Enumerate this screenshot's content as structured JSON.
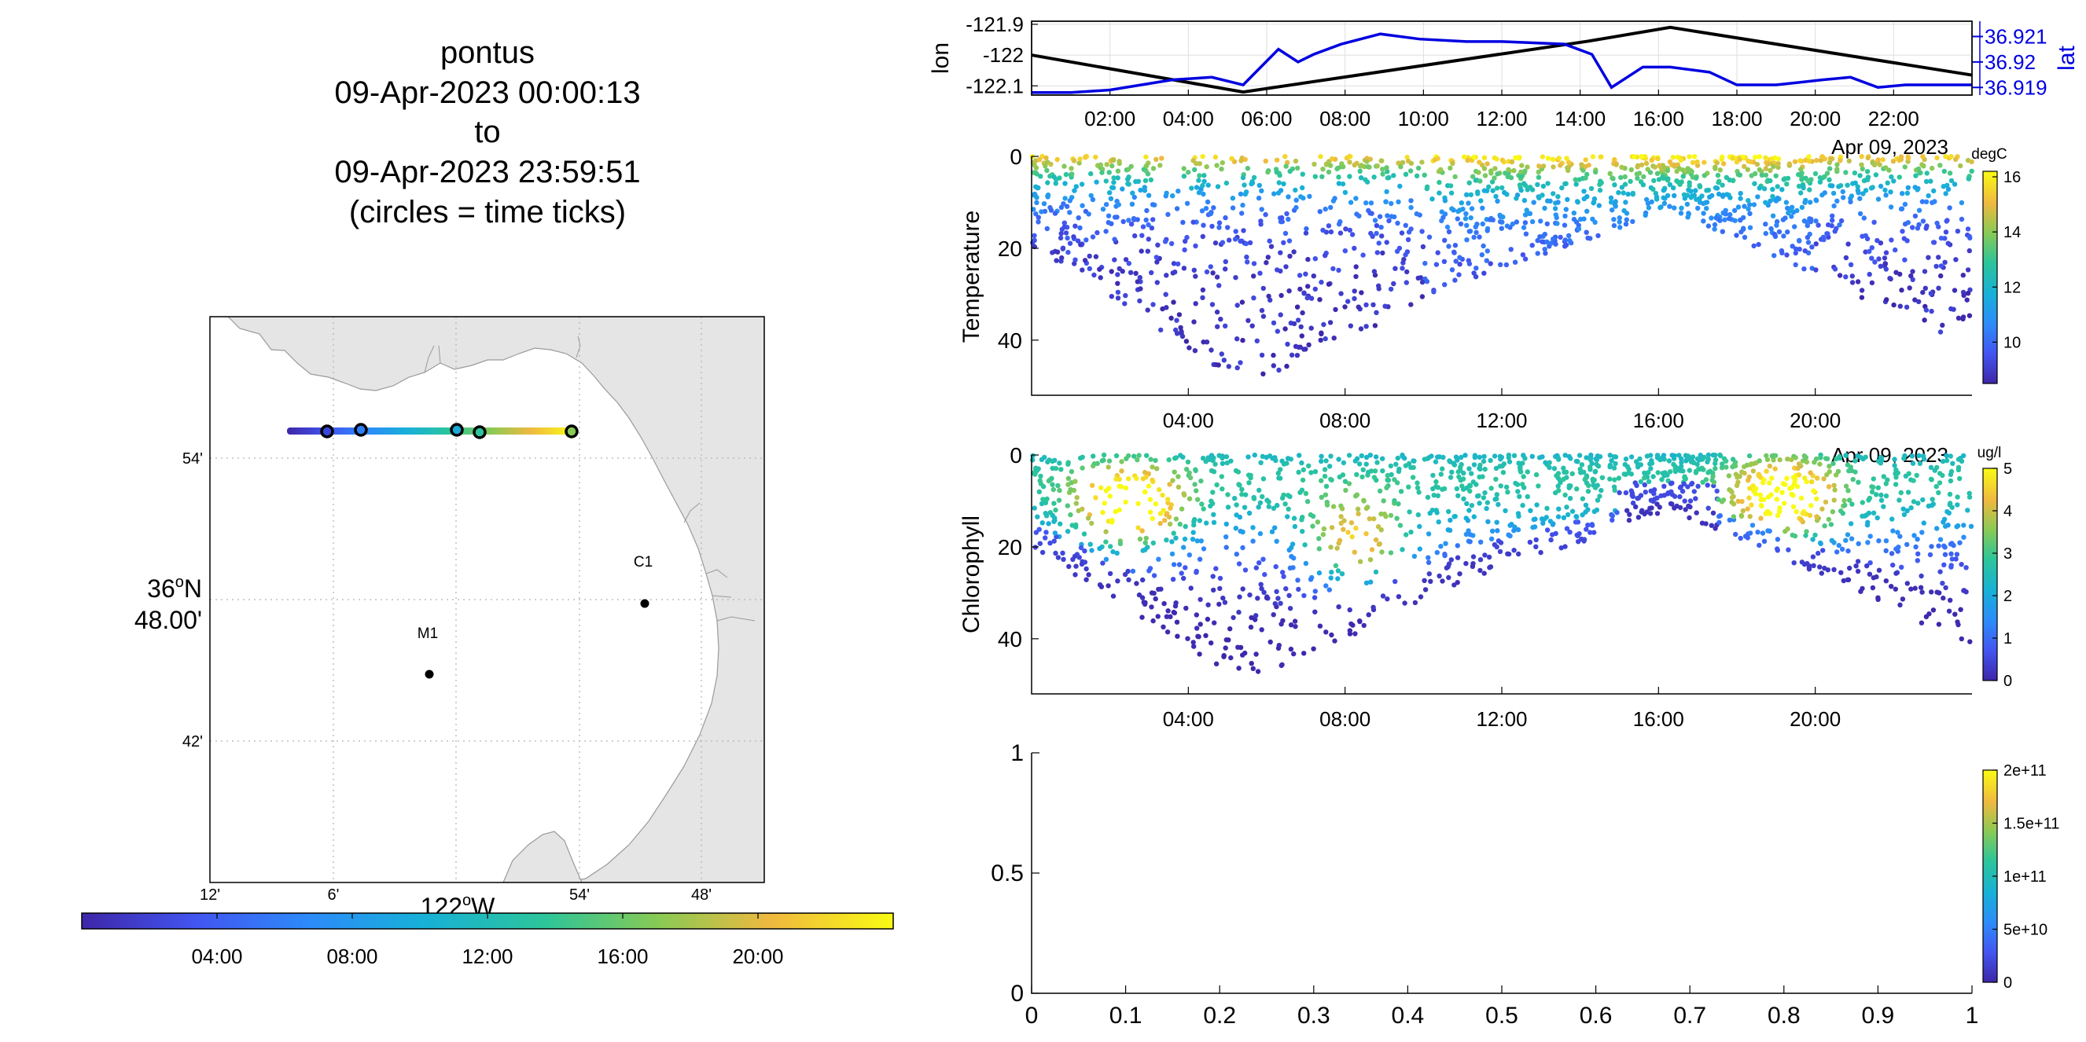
{
  "title": {
    "lines": [
      "pontus",
      "09-Apr-2023 00:00:13",
      "to",
      "09-Apr-2023 23:59:51",
      "(circles = time ticks)"
    ]
  },
  "map": {
    "lat_label_deg": "36",
    "lat_label_sup": "o",
    "lat_label_dir": "N",
    "lat_label_min": "48.00'",
    "lat_ticks": [
      "54'",
      "42'"
    ],
    "lon_ticks": [
      "12'",
      "6'",
      "54'",
      "48'"
    ],
    "lon_label_deg": "122",
    "lon_label_sup": "o",
    "lon_label_dir": "W",
    "stations": [
      {
        "name": "C1",
        "lat": 36.797,
        "lon": -121.847
      },
      {
        "name": "M1",
        "lat": 36.747,
        "lon": -122.022
      }
    ],
    "land_color": "#e5e5e5",
    "track_lat": 36.918,
    "track_lon_range": [
      -122.13,
      -121.88
    ],
    "time_tick_lons": [
      -122.098,
      -122.07,
      -121.99,
      -121.972,
      -121.898
    ]
  },
  "time_colorbar": {
    "ticks": [
      "04:00",
      "08:00",
      "12:00",
      "16:00",
      "20:00"
    ],
    "tick_hours": [
      4,
      8,
      12,
      16,
      20
    ]
  },
  "chart_data": [
    {
      "type": "line",
      "name": "lon-lat",
      "xlabel_date": "",
      "x_ticks": [
        "02:00",
        "04:00",
        "06:00",
        "08:00",
        "10:00",
        "12:00",
        "14:00",
        "16:00",
        "18:00",
        "20:00",
        "22:00"
      ],
      "x_tick_hours": [
        2,
        4,
        6,
        8,
        10,
        12,
        14,
        16,
        18,
        20,
        22
      ],
      "xlim": [
        0,
        24
      ],
      "ylabel": "lon",
      "y_ticks": [
        "-121.9",
        "-122",
        "-122.1"
      ],
      "y_tick_values": [
        -121.9,
        -122.0,
        -122.1
      ],
      "ylim": [
        -122.13,
        -121.89
      ],
      "y2label": "lat",
      "y2_ticks": [
        "36.921",
        "36.92",
        "36.919"
      ],
      "y2_tick_values": [
        36.921,
        36.92,
        36.919
      ],
      "y2lim": [
        36.9187,
        36.9216
      ],
      "colors": {
        "lon": "#000000",
        "lat": "#0000e0"
      },
      "series": [
        {
          "name": "lon",
          "hours": [
            0,
            5.4,
            14.2,
            16.3,
            24
          ],
          "values": [
            -122.0,
            -122.12,
            -121.955,
            -121.91,
            -122.065
          ]
        },
        {
          "name": "lat",
          "hours": [
            0,
            1,
            2,
            3.6,
            4.6,
            5.4,
            6.3,
            6.8,
            7.2,
            7.9,
            8.9,
            9.9,
            11.1,
            12.0,
            13.6,
            14.3,
            14.8,
            15.6,
            16.3,
            17.3,
            18.0,
            19.0,
            20.2,
            20.9,
            21.6,
            22.3,
            24
          ],
          "values": [
            36.9188,
            36.9188,
            36.9189,
            36.9193,
            36.9194,
            36.9191,
            36.9205,
            36.92,
            36.9203,
            36.9207,
            36.9211,
            36.9209,
            36.9208,
            36.9208,
            36.9207,
            36.9203,
            36.919,
            36.9198,
            36.9198,
            36.9196,
            36.9191,
            36.9191,
            36.9193,
            36.9194,
            36.919,
            36.9191,
            36.9191
          ]
        }
      ]
    },
    {
      "type": "scatter",
      "name": "temperature",
      "xlabel_date": "Apr 09, 2023",
      "x_ticks": [
        "04:00",
        "08:00",
        "12:00",
        "16:00",
        "20:00"
      ],
      "x_tick_hours": [
        4,
        8,
        12,
        16,
        20
      ],
      "xlim": [
        0,
        24
      ],
      "ylabel": "Temperature",
      "y_ticks": [
        "0",
        "20",
        "40"
      ],
      "y_tick_values": [
        0,
        20,
        40
      ],
      "ylim": [
        0,
        52
      ],
      "y_reversed": true,
      "colorbar_unit": "degC",
      "colorbar_ticks": [
        "16",
        "14",
        "12",
        "10"
      ],
      "colorbar_tick_values": [
        16,
        14,
        12,
        10
      ],
      "clim": [
        8.5,
        16.2
      ],
      "gap_hours": [
        14.6,
        14.75
      ],
      "profile_depth_envelope": {
        "hours": [
          0,
          5.5,
          8,
          10.5,
          12,
          14.5,
          16.3,
          19,
          21,
          24
        ],
        "depths": [
          20,
          50,
          40,
          30,
          24,
          18,
          12,
          22,
          30,
          42
        ]
      },
      "trend": "surface warm (14-16 degC), cold below 20 m (9-10 degC)"
    },
    {
      "type": "scatter",
      "name": "chlorophyll",
      "xlabel_date": "Apr 09, 2023",
      "x_ticks": [
        "04:00",
        "08:00",
        "12:00",
        "16:00",
        "20:00"
      ],
      "x_tick_hours": [
        4,
        8,
        12,
        16,
        20
      ],
      "xlim": [
        0,
        24
      ],
      "ylabel": "Chlorophyll",
      "y_ticks": [
        "0",
        "20",
        "40"
      ],
      "y_tick_values": [
        0,
        20,
        40
      ],
      "ylim": [
        0,
        52
      ],
      "y_reversed": true,
      "colorbar_unit": "ug/l",
      "colorbar_ticks": [
        "5",
        "4",
        "3",
        "2",
        "1",
        "0"
      ],
      "colorbar_tick_values": [
        5,
        4,
        3,
        2,
        1,
        0
      ],
      "clim": [
        0,
        5
      ],
      "gap_hours": [
        14.6,
        14.75
      ],
      "profile_depth_envelope": {
        "hours": [
          0,
          5.5,
          8,
          10.5,
          12,
          14.5,
          16.3,
          19,
          21,
          24
        ],
        "depths": [
          20,
          50,
          40,
          30,
          24,
          18,
          12,
          22,
          30,
          42
        ]
      },
      "hotspots": [
        {
          "hour": 2.5,
          "depth": 12,
          "value": 5
        },
        {
          "hour": 8.3,
          "depth": 20,
          "value": 4.5
        },
        {
          "hour": 19.2,
          "depth": 10,
          "value": 4.5
        }
      ]
    },
    {
      "type": "scatter",
      "name": "empty",
      "x_ticks": [
        "0",
        "0.1",
        "0.2",
        "0.3",
        "0.4",
        "0.5",
        "0.6",
        "0.7",
        "0.8",
        "0.9",
        "1"
      ],
      "x_tick_values": [
        0,
        0.1,
        0.2,
        0.3,
        0.4,
        0.5,
        0.6,
        0.7,
        0.8,
        0.9,
        1
      ],
      "xlim": [
        0,
        1
      ],
      "y_ticks": [
        "0",
        "0.5",
        "1"
      ],
      "y_tick_values": [
        0,
        0.5,
        1
      ],
      "ylim": [
        0,
        1
      ],
      "colorbar_ticks": [
        "2e+11",
        "1.5e+11",
        "1e+11",
        "5e+10",
        "0"
      ],
      "colorbar_tick_values": [
        200000000000.0,
        150000000000.0,
        100000000000.0,
        50000000000.0,
        0
      ],
      "clim": [
        0,
        200000000000.0
      ]
    }
  ]
}
